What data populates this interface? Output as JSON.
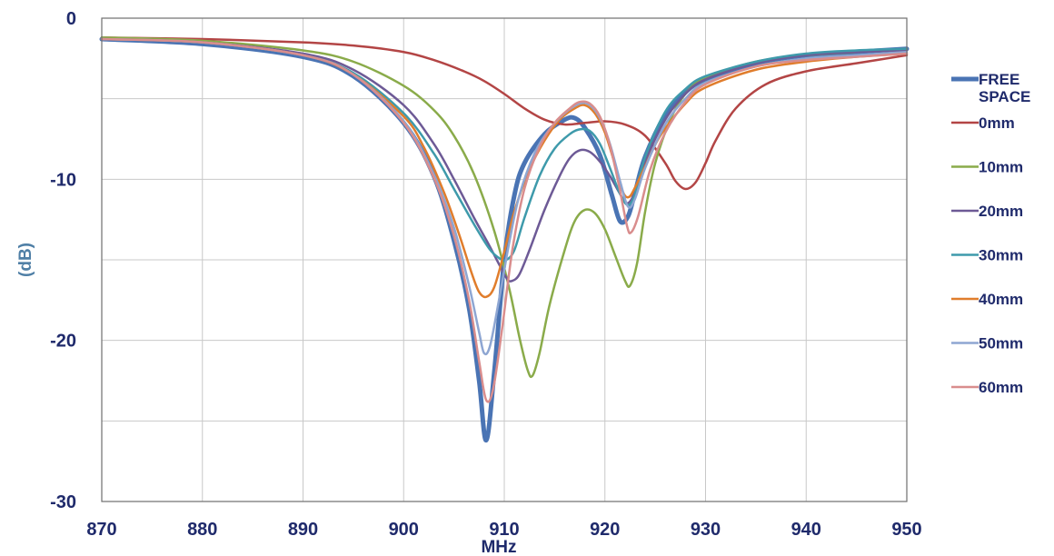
{
  "chart_data": {
    "type": "line",
    "xlabel": "MHz",
    "ylabel": "(dB)",
    "xlim": [
      870,
      950
    ],
    "ylim": [
      -30,
      0
    ],
    "xticks": [
      870,
      880,
      890,
      900,
      910,
      920,
      930,
      940,
      950
    ],
    "yticks": [
      0,
      -10,
      -20,
      -30
    ],
    "grid": true,
    "legend_position": "right",
    "series": [
      {
        "name": "FREE SPACE",
        "color": "#4a74b4",
        "width": 5,
        "points": [
          [
            870,
            -1.3
          ],
          [
            880,
            -1.6
          ],
          [
            890,
            -2.4
          ],
          [
            895,
            -3.6
          ],
          [
            900,
            -6.5
          ],
          [
            903,
            -9.8
          ],
          [
            905,
            -13.8
          ],
          [
            906.5,
            -18
          ],
          [
            907.5,
            -22.5
          ],
          [
            908.2,
            -26.2
          ],
          [
            909,
            -22
          ],
          [
            910,
            -15
          ],
          [
            911,
            -11
          ],
          [
            912,
            -9
          ],
          [
            914,
            -7.2
          ],
          [
            916,
            -6.3
          ],
          [
            917,
            -6.2
          ],
          [
            918,
            -6.8
          ],
          [
            919.5,
            -8.5
          ],
          [
            920.7,
            -11
          ],
          [
            921.5,
            -12.6
          ],
          [
            922.3,
            -12.3
          ],
          [
            923,
            -10.8
          ],
          [
            924,
            -8.6
          ],
          [
            926,
            -6
          ],
          [
            928,
            -4.6
          ],
          [
            930,
            -3.8
          ],
          [
            935,
            -2.8
          ],
          [
            940,
            -2.3
          ],
          [
            945,
            -2.1
          ],
          [
            950,
            -1.9
          ]
        ]
      },
      {
        "name": "0mm",
        "color": "#b34545",
        "width": 2.5,
        "points": [
          [
            870,
            -1.2
          ],
          [
            880,
            -1.3
          ],
          [
            890,
            -1.5
          ],
          [
            895,
            -1.7
          ],
          [
            900,
            -2.1
          ],
          [
            903,
            -2.6
          ],
          [
            906,
            -3.3
          ],
          [
            908,
            -3.9
          ],
          [
            910,
            -4.7
          ],
          [
            912,
            -5.6
          ],
          [
            914,
            -6.3
          ],
          [
            916,
            -6.6
          ],
          [
            918,
            -6.5
          ],
          [
            920,
            -6.4
          ],
          [
            922,
            -6.6
          ],
          [
            924,
            -7.3
          ],
          [
            926,
            -9
          ],
          [
            927,
            -10.1
          ],
          [
            928,
            -10.6
          ],
          [
            929,
            -10.2
          ],
          [
            930,
            -9
          ],
          [
            931,
            -7.6
          ],
          [
            933,
            -5.6
          ],
          [
            936,
            -4.1
          ],
          [
            940,
            -3.3
          ],
          [
            945,
            -2.8
          ],
          [
            950,
            -2.3
          ]
        ]
      },
      {
        "name": "10mm",
        "color": "#8aab4a",
        "width": 2.5,
        "points": [
          [
            870,
            -1.2
          ],
          [
            880,
            -1.4
          ],
          [
            890,
            -2
          ],
          [
            895,
            -2.7
          ],
          [
            900,
            -4.2
          ],
          [
            903,
            -5.7
          ],
          [
            905,
            -7.3
          ],
          [
            907,
            -9.7
          ],
          [
            909,
            -13.2
          ],
          [
            910.5,
            -16.8
          ],
          [
            911.5,
            -19.8
          ],
          [
            912.3,
            -21.8
          ],
          [
            912.8,
            -22.2
          ],
          [
            913.5,
            -20.8
          ],
          [
            914.5,
            -17.8
          ],
          [
            916,
            -14.4
          ],
          [
            917,
            -12.6
          ],
          [
            918,
            -11.9
          ],
          [
            919,
            -12.1
          ],
          [
            920,
            -13.1
          ],
          [
            921,
            -14.7
          ],
          [
            922,
            -16.3
          ],
          [
            922.5,
            -16.6
          ],
          [
            923.2,
            -15.2
          ],
          [
            924,
            -12
          ],
          [
            925,
            -9
          ],
          [
            926.5,
            -6.3
          ],
          [
            928,
            -4.7
          ],
          [
            930,
            -3.7
          ],
          [
            935,
            -2.7
          ],
          [
            940,
            -2.3
          ],
          [
            945,
            -2.1
          ],
          [
            950,
            -1.9
          ]
        ]
      },
      {
        "name": "20mm",
        "color": "#6d5a96",
        "width": 2.5,
        "points": [
          [
            870,
            -1.3
          ],
          [
            880,
            -1.5
          ],
          [
            890,
            -2.2
          ],
          [
            895,
            -3.2
          ],
          [
            900,
            -5.4
          ],
          [
            903,
            -7.8
          ],
          [
            905,
            -10
          ],
          [
            907,
            -12.4
          ],
          [
            908.5,
            -14.1
          ],
          [
            909.5,
            -15.3
          ],
          [
            910.3,
            -16.2
          ],
          [
            910.8,
            -16.3
          ],
          [
            911.5,
            -15.9
          ],
          [
            912.5,
            -14.4
          ],
          [
            914,
            -11.9
          ],
          [
            915.5,
            -9.8
          ],
          [
            916.5,
            -8.7
          ],
          [
            917.5,
            -8.2
          ],
          [
            918.5,
            -8.3
          ],
          [
            919.5,
            -8.9
          ],
          [
            920.5,
            -9.8
          ],
          [
            921.5,
            -10.9
          ],
          [
            922.2,
            -11.5
          ],
          [
            923,
            -10.8
          ],
          [
            924,
            -8.9
          ],
          [
            926,
            -6.3
          ],
          [
            928,
            -4.7
          ],
          [
            930,
            -3.8
          ],
          [
            935,
            -2.8
          ],
          [
            940,
            -2.3
          ],
          [
            945,
            -2.1
          ],
          [
            950,
            -2
          ]
        ]
      },
      {
        "name": "30mm",
        "color": "#3e9aab",
        "width": 2.5,
        "points": [
          [
            870,
            -1.3
          ],
          [
            880,
            -1.5
          ],
          [
            890,
            -2.3
          ],
          [
            895,
            -3.4
          ],
          [
            900,
            -5.9
          ],
          [
            903,
            -8.4
          ],
          [
            905,
            -10.6
          ],
          [
            907,
            -12.8
          ],
          [
            908.5,
            -14.3
          ],
          [
            909.5,
            -14.9
          ],
          [
            910.2,
            -15
          ],
          [
            911,
            -14.4
          ],
          [
            912,
            -12.4
          ],
          [
            913.5,
            -9.8
          ],
          [
            915,
            -8.1
          ],
          [
            916.5,
            -7.2
          ],
          [
            917.5,
            -6.9
          ],
          [
            918.5,
            -7
          ],
          [
            919.5,
            -7.8
          ],
          [
            920.5,
            -9.3
          ],
          [
            921.5,
            -10.9
          ],
          [
            922.3,
            -11.6
          ],
          [
            923,
            -10.9
          ],
          [
            924,
            -8.6
          ],
          [
            926,
            -5.8
          ],
          [
            928,
            -4.4
          ],
          [
            930,
            -3.6
          ],
          [
            935,
            -2.7
          ],
          [
            940,
            -2.2
          ],
          [
            945,
            -2
          ],
          [
            950,
            -1.9
          ]
        ]
      },
      {
        "name": "40mm",
        "color": "#e07d2c",
        "width": 2.5,
        "points": [
          [
            870,
            -1.3
          ],
          [
            880,
            -1.5
          ],
          [
            890,
            -2.3
          ],
          [
            895,
            -3.5
          ],
          [
            900,
            -6.1
          ],
          [
            902,
            -8
          ],
          [
            904,
            -10.8
          ],
          [
            905.5,
            -13.4
          ],
          [
            906.8,
            -15.9
          ],
          [
            907.5,
            -17
          ],
          [
            908.2,
            -17.3
          ],
          [
            909,
            -16.7
          ],
          [
            910,
            -14.5
          ],
          [
            911,
            -12
          ],
          [
            912.5,
            -9.4
          ],
          [
            914,
            -7.6
          ],
          [
            915.5,
            -6.3
          ],
          [
            917,
            -5.6
          ],
          [
            918,
            -5.4
          ],
          [
            919,
            -5.9
          ],
          [
            920,
            -7.1
          ],
          [
            921,
            -9.1
          ],
          [
            921.8,
            -10.8
          ],
          [
            922.4,
            -11.1
          ],
          [
            923,
            -10.5
          ],
          [
            924,
            -9.2
          ],
          [
            925.5,
            -7.3
          ],
          [
            928,
            -5.3
          ],
          [
            930,
            -4.3
          ],
          [
            935,
            -3.2
          ],
          [
            940,
            -2.7
          ],
          [
            945,
            -2.4
          ],
          [
            950,
            -2.2
          ]
        ]
      },
      {
        "name": "50mm",
        "color": "#8ea6d2",
        "width": 2.5,
        "points": [
          [
            870,
            -1.3
          ],
          [
            880,
            -1.5
          ],
          [
            890,
            -2.3
          ],
          [
            895,
            -3.5
          ],
          [
            900,
            -6.4
          ],
          [
            903,
            -9.7
          ],
          [
            905,
            -13
          ],
          [
            906.5,
            -16.6
          ],
          [
            907.5,
            -19.5
          ],
          [
            908,
            -20.8
          ],
          [
            908.6,
            -20.3
          ],
          [
            909.5,
            -17.4
          ],
          [
            910.5,
            -13.9
          ],
          [
            911.5,
            -11
          ],
          [
            913,
            -8.4
          ],
          [
            914.5,
            -6.9
          ],
          [
            916,
            -5.9
          ],
          [
            917.5,
            -5.3
          ],
          [
            918.5,
            -5.4
          ],
          [
            919.5,
            -6.2
          ],
          [
            920.5,
            -7.8
          ],
          [
            921.5,
            -10.1
          ],
          [
            922.3,
            -11.7
          ],
          [
            923,
            -11.2
          ],
          [
            924,
            -9.3
          ],
          [
            926,
            -6.6
          ],
          [
            928,
            -5
          ],
          [
            930,
            -4
          ],
          [
            935,
            -3
          ],
          [
            940,
            -2.5
          ],
          [
            945,
            -2.3
          ],
          [
            950,
            -2.1
          ]
        ]
      },
      {
        "name": "60mm",
        "color": "#d98d8d",
        "width": 2.5,
        "points": [
          [
            870,
            -1.3
          ],
          [
            880,
            -1.5
          ],
          [
            890,
            -2.3
          ],
          [
            895,
            -3.5
          ],
          [
            900,
            -6.5
          ],
          [
            903,
            -9.9
          ],
          [
            905,
            -13.5
          ],
          [
            906.5,
            -17.5
          ],
          [
            907.5,
            -21.3
          ],
          [
            908.2,
            -23.7
          ],
          [
            908.9,
            -23
          ],
          [
            909.8,
            -19.2
          ],
          [
            910.8,
            -14.4
          ],
          [
            912,
            -10.6
          ],
          [
            913.5,
            -8
          ],
          [
            915,
            -6.5
          ],
          [
            916.5,
            -5.6
          ],
          [
            917.5,
            -5.2
          ],
          [
            918.5,
            -5.3
          ],
          [
            919.5,
            -6.1
          ],
          [
            920.5,
            -7.9
          ],
          [
            921.4,
            -10.4
          ],
          [
            922.2,
            -12.9
          ],
          [
            922.6,
            -13.3
          ],
          [
            923.3,
            -12.3
          ],
          [
            924.5,
            -9.4
          ],
          [
            926,
            -7.1
          ],
          [
            928,
            -5.2
          ],
          [
            930,
            -4.1
          ],
          [
            935,
            -3
          ],
          [
            940,
            -2.6
          ],
          [
            945,
            -2.4
          ],
          [
            950,
            -2.2
          ]
        ]
      }
    ]
  },
  "colors": {
    "tick_text": "#1f2a6b",
    "axis_title_y": "#4f7fa6",
    "axis_title_x": "#1f2a6b",
    "grid": "#c8c8c8",
    "frame": "#6f6f6f"
  }
}
